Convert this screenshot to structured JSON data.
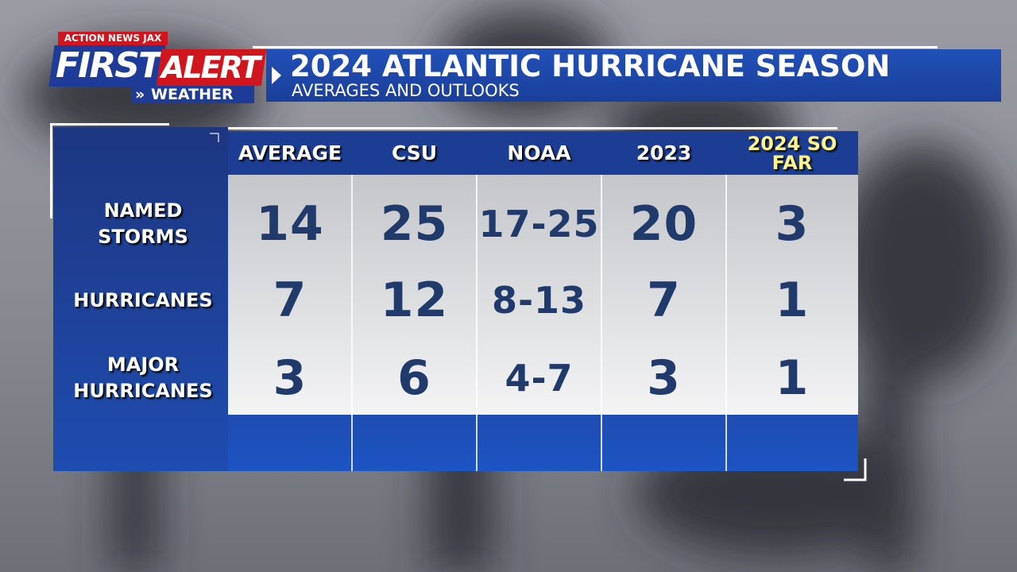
{
  "logo": {
    "station": "ACTION NEWS JAX",
    "first": "FIRST",
    "alert": "ALERT",
    "weather": "WEATHER"
  },
  "header": {
    "title": "2024 ATLANTIC HURRICANE SEASON",
    "subtitle": "AVERAGES AND OUTLOOKS"
  },
  "table": {
    "columns": [
      "AVERAGE",
      "CSU",
      "NOAA",
      "2023",
      "2024 SO FAR"
    ],
    "rows": [
      {
        "label": "NAMED STORMS",
        "cells": [
          "14",
          "25",
          "17-25",
          "20",
          "3"
        ]
      },
      {
        "label": "HURRICANES",
        "cells": [
          "7",
          "12",
          "8-13",
          "7",
          "1"
        ]
      },
      {
        "label": "MAJOR HURRICANES",
        "cells": [
          "3",
          "6",
          "4-7",
          "3",
          "1"
        ]
      }
    ]
  }
}
